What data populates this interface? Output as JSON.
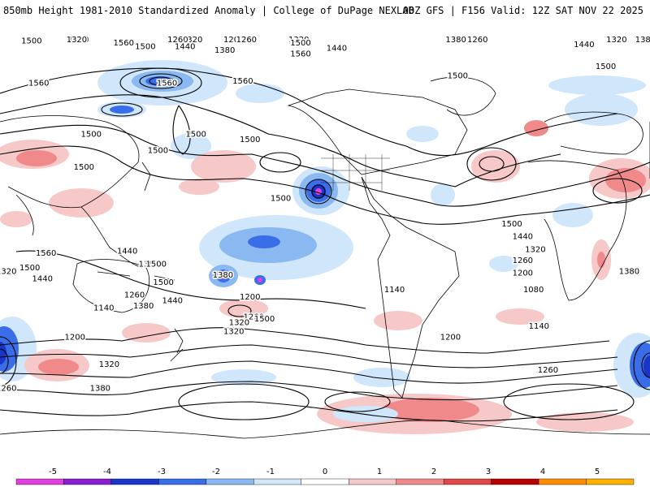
{
  "header": {
    "title": "850mb Height 1981-2010 Standardized Anomaly | College of DuPage NEXLAB",
    "valid": "00Z GFS | F156 Valid: 12Z SAT NOV 22 2025"
  },
  "map": {
    "projection": "equirectangular global",
    "contour_labels": [
      {
        "text": "1320",
        "lon": -150,
        "lat": 68
      },
      {
        "text": "1200",
        "lon": -127,
        "lat": 82
      },
      {
        "text": "1260",
        "lon": -158,
        "lat": 60
      },
      {
        "text": "1260",
        "lon": -120,
        "lat": 47
      },
      {
        "text": "1500",
        "lon": -176,
        "lat": 41
      },
      {
        "text": "1440",
        "lon": -154,
        "lat": 41
      },
      {
        "text": "1380",
        "lon": -132,
        "lat": 39
      },
      {
        "text": "1560",
        "lon": -164,
        "lat": 21
      },
      {
        "text": "1560",
        "lon": -122,
        "lat": 22
      },
      {
        "text": "1500",
        "lon": -148,
        "lat": -7
      },
      {
        "text": "1500",
        "lon": -169,
        "lat": -16
      },
      {
        "text": "1500",
        "lon": -118,
        "lat": -10
      },
      {
        "text": "1500",
        "lon": -101,
        "lat": -42
      },
      {
        "text": "1320",
        "lon": -91,
        "lat": 55
      },
      {
        "text": "1500",
        "lon": -90,
        "lat": 43
      },
      {
        "text": "1560",
        "lon": -90,
        "lat": 37
      },
      {
        "text": "1440",
        "lon": -70,
        "lat": 40
      },
      {
        "text": "1500",
        "lon": -3,
        "lat": 25
      },
      {
        "text": "1380",
        "lon": -4,
        "lat": 59
      },
      {
        "text": "1260",
        "lon": 8,
        "lat": 79
      },
      {
        "text": "1440",
        "lon": 67,
        "lat": 42
      },
      {
        "text": "1500",
        "lon": 79,
        "lat": 30
      },
      {
        "text": "1200",
        "lon": 147,
        "lat": 83
      },
      {
        "text": "1320",
        "lon": 85,
        "lat": 75
      },
      {
        "text": "1320",
        "lon": 146,
        "lat": 59
      },
      {
        "text": "1380",
        "lon": 101,
        "lat": 62
      },
      {
        "text": "1500",
        "lon": 121,
        "lat": 44
      },
      {
        "text": "1560",
        "lon": 172,
        "lat": 43
      },
      {
        "text": "1560",
        "lon": 125,
        "lat": 21
      },
      {
        "text": "1500",
        "lon": 154,
        "lat": -7
      },
      {
        "text": "1500",
        "lon": 150,
        "lat": -25
      },
      {
        "text": "1500",
        "lon": 27,
        "lat": -56
      },
      {
        "text": "1440",
        "lon": 33,
        "lat": -63
      },
      {
        "text": "1320",
        "lon": 40,
        "lat": -70
      },
      {
        "text": "1260",
        "lon": 33,
        "lat": -76
      },
      {
        "text": "1200",
        "lon": 33,
        "lat": -83
      },
      {
        "text": "1080",
        "lon": 39,
        "lat": -92
      },
      {
        "text": "1140",
        "lon": -38,
        "lat": -92
      },
      {
        "text": "1140",
        "lon": 42,
        "lat": -112
      },
      {
        "text": "1200",
        "lon": -7,
        "lat": -118
      },
      {
        "text": "1260",
        "lon": 47,
        "lat": -136
      },
      {
        "text": "1380",
        "lon": -174,
        "lat": -78
      },
      {
        "text": "1500",
        "lon": -166,
        "lat": -88
      },
      {
        "text": "1440",
        "lon": -161,
        "lat": -98
      },
      {
        "text": "1380",
        "lon": -133,
        "lat": -84
      },
      {
        "text": "1320",
        "lon": -127,
        "lat": -115
      },
      {
        "text": "1200",
        "lon": -118,
        "lat": -96
      },
      {
        "text": "1260",
        "lon": -116,
        "lat": -107
      },
      {
        "text": "1260",
        "lon": -182,
        "lat": -95
      },
      {
        "text": "1320",
        "lon": -124,
        "lat": -110
      },
      {
        "text": "1380",
        "lon": -177,
        "lat": -101
      },
      {
        "text": "1500",
        "lon": -110,
        "lat": -108
      },
      {
        "text": "1380",
        "lon": 92,
        "lat": -82
      },
      {
        "text": "1320",
        "lon": 107,
        "lat": -82
      },
      {
        "text": "1440",
        "lon": 127,
        "lat": -86
      },
      {
        "text": "1500",
        "lon": 120,
        "lat": -80
      },
      {
        "text": "1560",
        "lon": 129,
        "lat": -72
      },
      {
        "text": "1140",
        "lon": 161,
        "lat": -102
      },
      {
        "text": "1200",
        "lon": 145,
        "lat": -118
      },
      {
        "text": "1320",
        "lon": 164,
        "lat": -133
      },
      {
        "text": "1380",
        "lon": 159,
        "lat": -146
      },
      {
        "text": "1260",
        "lon": 107,
        "lat": -146
      },
      {
        "text": "1440",
        "lon": -186,
        "lat": -71
      },
      {
        "text": "1500",
        "lon": -170,
        "lat": -78
      }
    ]
  },
  "colorbar": {
    "ticks": [
      "-5",
      "-4",
      "-3",
      "-2",
      "-1",
      "0",
      "1",
      "2",
      "3",
      "4",
      "5"
    ],
    "colors": [
      "#e040e0",
      "#8a1ed0",
      "#1a36c8",
      "#3a6ee8",
      "#8ab8f0",
      "#cfe6fb",
      "#ffffff",
      "#f7c8c8",
      "#f08a8a",
      "#e04848",
      "#b80000",
      "#ff8c00",
      "#ffb000"
    ]
  }
}
